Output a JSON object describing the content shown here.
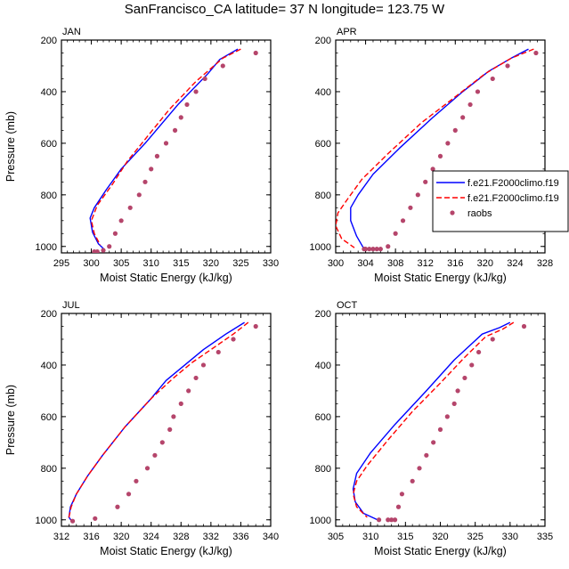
{
  "title": "SanFrancisco_CA  latitude= 37 N longitude= 123.75 W",
  "colors": {
    "model1": "#0000ff",
    "model2": "#ff0000",
    "raobs": "#b5456b"
  },
  "chart_data": [
    {
      "panel": "JAN",
      "type": "line",
      "xlabel": "Moist Static Energy (kJ/kg)",
      "ylabel": "Pressure (mb)",
      "xlim": [
        295,
        330
      ],
      "xticks": [
        295,
        300,
        305,
        310,
        315,
        320,
        325,
        330
      ],
      "ylim": [
        200,
        1025
      ],
      "yticks": [
        200,
        400,
        600,
        800,
        1000
      ],
      "y_reversed": true,
      "series": [
        {
          "key": "model1",
          "style": "solid",
          "x": [
            324.5,
            321.5,
            319.5,
            314.5,
            309.0,
            305.0,
            302.5,
            300.5,
            299.8,
            300.2,
            301.2,
            302.2
          ],
          "y": [
            235,
            275,
            330,
            450,
            600,
            700,
            780,
            850,
            890,
            945,
            990,
            1012
          ]
        },
        {
          "key": "model2",
          "style": "dashed",
          "x": [
            325.0,
            322.0,
            320.5,
            317.5,
            313.0,
            309.5,
            306.0,
            303.5,
            301.0,
            300.0,
            300.5,
            301.5
          ],
          "y": [
            235,
            270,
            300,
            360,
            470,
            570,
            670,
            760,
            840,
            900,
            950,
            995
          ]
        },
        {
          "key": "raobs",
          "style": "dots",
          "x": [
            327.5,
            322.0,
            319.0,
            317.5,
            316.0,
            315.0,
            314.0,
            312.5,
            311.0,
            310.0,
            309.0,
            308.0,
            306.5,
            305.0,
            304.0,
            303.0,
            302.0,
            301.0,
            300.5
          ],
          "y": [
            250,
            300,
            350,
            400,
            450,
            500,
            550,
            600,
            650,
            700,
            750,
            800,
            850,
            900,
            950,
            1000,
            1015,
            1020,
            1020
          ]
        }
      ]
    },
    {
      "panel": "APR",
      "type": "line",
      "xlabel": "Moist Static Energy (kJ/kg)",
      "ylabel": "",
      "xlim": [
        300,
        328
      ],
      "xticks": [
        300,
        304,
        308,
        312,
        316,
        320,
        324,
        328
      ],
      "ylim": [
        200,
        1025
      ],
      "yticks": [
        200,
        400,
        600,
        800,
        1000
      ],
      "y_reversed": true,
      "series": [
        {
          "key": "model1",
          "style": "solid",
          "x": [
            325.8,
            323.5,
            320.5,
            317.0,
            313.0,
            308.5,
            305.0,
            303.0,
            302.0,
            302.0,
            302.8,
            303.8
          ],
          "y": [
            235,
            270,
            320,
            400,
            500,
            620,
            720,
            800,
            850,
            900,
            960,
            1010
          ]
        },
        {
          "key": "model2",
          "style": "dashed",
          "x": [
            326.5,
            323.5,
            320.0,
            316.0,
            311.5,
            307.0,
            303.5,
            301.5,
            300.3,
            300.0,
            300.8,
            302.5
          ],
          "y": [
            235,
            270,
            330,
            420,
            520,
            640,
            740,
            820,
            870,
            920,
            970,
            1005
          ]
        },
        {
          "key": "raobs",
          "style": "dots",
          "x": [
            326.8,
            323.0,
            321.0,
            319.0,
            318.0,
            317.0,
            316.0,
            315.0,
            314.0,
            313.0,
            312.0,
            311.0,
            310.0,
            309.0,
            308.0,
            307.0,
            306.0,
            305.5,
            305.0,
            304.5,
            304.0,
            303.8
          ],
          "y": [
            250,
            300,
            350,
            400,
            450,
            500,
            550,
            600,
            650,
            700,
            750,
            800,
            850,
            900,
            950,
            1000,
            1010,
            1010,
            1010,
            1010,
            1010,
            1010
          ]
        }
      ]
    },
    {
      "panel": "JUL",
      "type": "line",
      "xlabel": "Moist Static Energy (kJ/kg)",
      "ylabel": "Pressure (mb)",
      "xlim": [
        312,
        340
      ],
      "xticks": [
        312,
        316,
        320,
        324,
        328,
        332,
        336,
        340
      ],
      "ylim": [
        200,
        1025
      ],
      "yticks": [
        200,
        400,
        600,
        800,
        1000
      ],
      "y_reversed": true,
      "series": [
        {
          "key": "model1",
          "style": "solid",
          "x": [
            336.5,
            334.0,
            331.0,
            328.5,
            326.0,
            324.0,
            320.5,
            317.5,
            315.5,
            314.0,
            313.2,
            313.0,
            313.5
          ],
          "y": [
            235,
            280,
            340,
            400,
            460,
            530,
            640,
            750,
            830,
            900,
            950,
            990,
            1010
          ]
        },
        {
          "key": "model2",
          "style": "dashed",
          "x": [
            337.0,
            335.0,
            332.5,
            329.5,
            327.0,
            324.0,
            320.5,
            317.5,
            315.5,
            314.0,
            313.3,
            313.0,
            313.5
          ],
          "y": [
            235,
            280,
            330,
            390,
            450,
            530,
            640,
            750,
            830,
            900,
            950,
            990,
            1010
          ]
        },
        {
          "key": "raobs",
          "style": "dots",
          "x": [
            338.0,
            335.0,
            333.0,
            331.0,
            330.0,
            329.0,
            328.0,
            327.0,
            326.5,
            325.5,
            324.5,
            323.5,
            322.0,
            321.0,
            319.5,
            316.5,
            313.5
          ],
          "y": [
            250,
            300,
            350,
            400,
            450,
            500,
            550,
            600,
            650,
            700,
            750,
            800,
            850,
            900,
            950,
            995,
            1005
          ]
        }
      ]
    },
    {
      "panel": "OCT",
      "type": "line",
      "xlabel": "Moist Static Energy (kJ/kg)",
      "ylabel": "",
      "xlim": [
        305,
        335
      ],
      "xticks": [
        305,
        310,
        315,
        320,
        325,
        330,
        335
      ],
      "ylim": [
        200,
        1025
      ],
      "yticks": [
        200,
        400,
        600,
        800,
        1000
      ],
      "y_reversed": true,
      "series": [
        {
          "key": "model1",
          "style": "solid",
          "x": [
            330.0,
            328.5,
            326.0,
            322.0,
            318.0,
            313.5,
            310.0,
            308.0,
            307.5,
            307.8,
            309.0,
            311.0
          ],
          "y": [
            235,
            255,
            280,
            380,
            500,
            630,
            740,
            820,
            880,
            930,
            975,
            1000
          ]
        },
        {
          "key": "model2",
          "style": "dashed",
          "x": [
            330.5,
            329.0,
            326.5,
            323.5,
            320.0,
            316.0,
            312.5,
            309.5,
            308.0,
            307.5,
            308.0,
            309.5
          ],
          "y": [
            235,
            260,
            290,
            370,
            470,
            580,
            690,
            790,
            850,
            900,
            950,
            990
          ]
        },
        {
          "key": "raobs",
          "style": "dots",
          "x": [
            332.0,
            327.5,
            325.5,
            324.5,
            323.5,
            322.5,
            322.0,
            321.0,
            320.0,
            319.0,
            318.0,
            317.0,
            316.0,
            314.5,
            314.0,
            313.5,
            313.0,
            312.5,
            311.2
          ],
          "y": [
            250,
            300,
            350,
            400,
            450,
            500,
            550,
            600,
            650,
            700,
            750,
            800,
            850,
            900,
            950,
            1000,
            1000,
            1000,
            1000
          ]
        }
      ]
    }
  ],
  "legend": {
    "items": [
      {
        "key": "model1",
        "label": "f.e21.F2000climo.f19"
      },
      {
        "key": "model2",
        "label": "f.e21.F2000climo.f19"
      },
      {
        "key": "raobs",
        "label": "raobs"
      }
    ]
  }
}
